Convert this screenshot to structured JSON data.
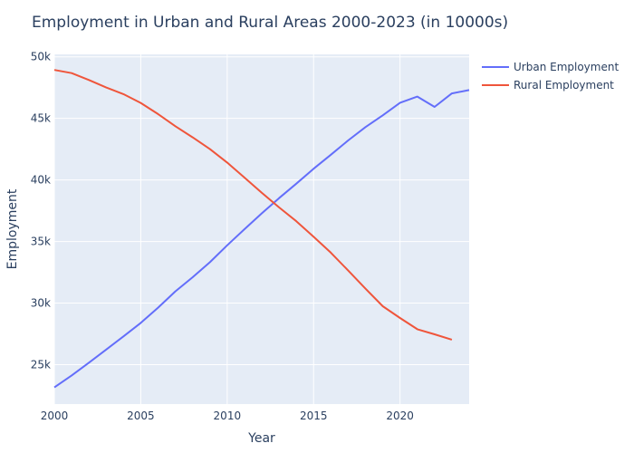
{
  "chart_data": {
    "type": "line",
    "title": "Employment in Urban and Rural Areas 2000-2023 (in 10000s)",
    "xlabel": "Year",
    "ylabel": "Employment",
    "xlim": [
      2000,
      2024
    ],
    "ylim": [
      21800,
      50200
    ],
    "x_ticks": [
      2000,
      2005,
      2010,
      2015,
      2020
    ],
    "x_tick_labels": [
      "2000",
      "2005",
      "2010",
      "2015",
      "2020"
    ],
    "y_ticks": [
      25000,
      30000,
      35000,
      40000,
      45000,
      50000
    ],
    "y_tick_labels": [
      "25k",
      "30k",
      "35k",
      "40k",
      "45k",
      "50k"
    ],
    "grid": true,
    "legend_position": "top-right",
    "plot_background": "#e5ecf6",
    "series": [
      {
        "name": "Urban Employment",
        "color": "#636efa",
        "x": [
          2000,
          2001,
          2002,
          2003,
          2004,
          2005,
          2006,
          2007,
          2008,
          2009,
          2010,
          2011,
          2012,
          2013,
          2014,
          2015,
          2016,
          2017,
          2018,
          2019,
          2020,
          2021,
          2022,
          2023,
          2024
        ],
        "values": [
          23151,
          24123,
          25159,
          26230,
          27293,
          28389,
          29630,
          30953,
          32103,
          33322,
          34687,
          36003,
          37287,
          38527,
          39703,
          40916,
          42051,
          43208,
          44292,
          45249,
          46271,
          46773,
          45931,
          47032,
          47300
        ]
      },
      {
        "name": "Rural Employment",
        "color": "#ef553b",
        "x": [
          2000,
          2001,
          2002,
          2003,
          2004,
          2005,
          2006,
          2007,
          2008,
          2009,
          2010,
          2011,
          2012,
          2013,
          2014,
          2015,
          2016,
          2017,
          2018,
          2019,
          2020,
          2021,
          2022,
          2023
        ],
        "values": [
          48934,
          48674,
          48121,
          47506,
          46971,
          46258,
          45348,
          44368,
          43461,
          42506,
          41418,
          40193,
          38967,
          37774,
          36646,
          35384,
          34092,
          32642,
          31177,
          29744,
          28793,
          27879,
          27465,
          27032
        ]
      }
    ]
  }
}
